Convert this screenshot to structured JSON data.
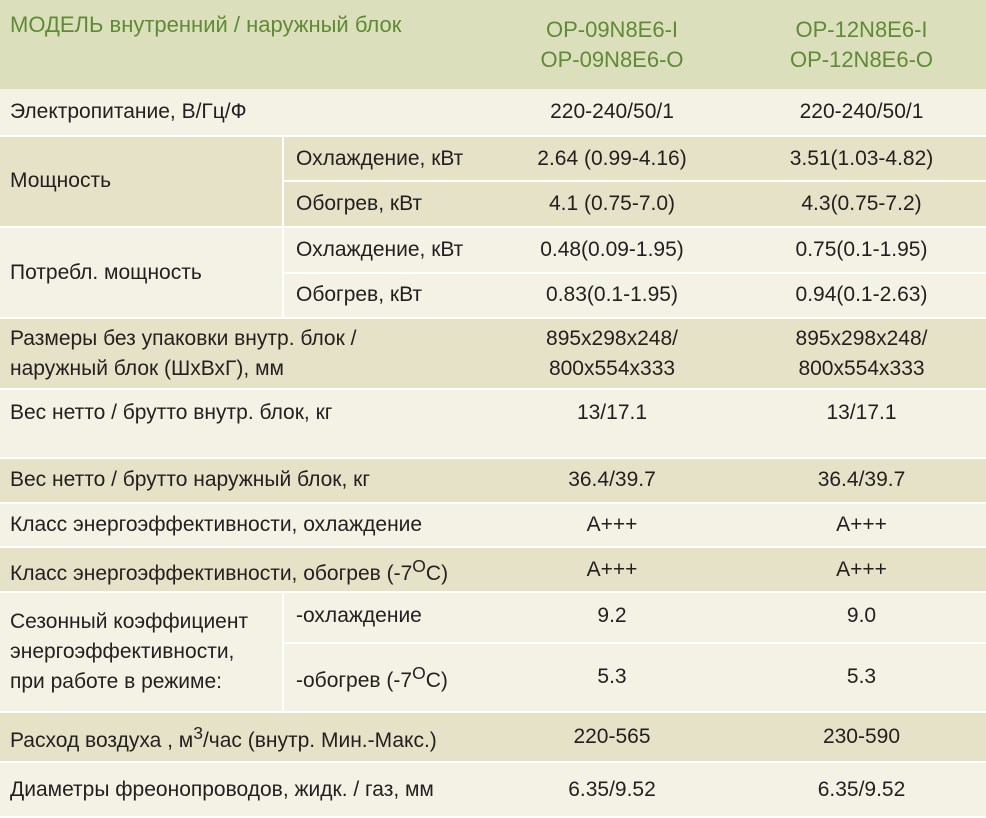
{
  "header": {
    "label": "МОДЕЛЬ  внутренний  /  наружный блок",
    "models": [
      "OP-09N8E6-I\nOP-09N8E6-O",
      "OP-12N8E6-I\nOP-12N8E6-O"
    ]
  },
  "rows": {
    "power_supply": {
      "label": "Электропитание, В/Гц/Ф",
      "values": [
        "220-240/50/1",
        "220-240/50/1"
      ]
    },
    "capacity": {
      "label": "Мощность",
      "cooling": {
        "label": "Охлаждение, кВт",
        "values": [
          "2.64 (0.99-4.16)",
          "3.51(1.03-4.82)"
        ]
      },
      "heating": {
        "label": "Обогрев, кВт",
        "values": [
          "4.1 (0.75-7.0)",
          "4.3(0.75-7.2)"
        ]
      }
    },
    "power_input": {
      "label": "Потребл. мощность",
      "cooling": {
        "label": "Охлаждение, кВт",
        "values": [
          "0.48(0.09-1.95)",
          "0.75(0.1-1.95)"
        ]
      },
      "heating": {
        "label": "Обогрев, кВт",
        "values": [
          "0.83(0.1-1.95)",
          "0.94(0.1-2.63)"
        ]
      }
    },
    "dimensions": {
      "label": "Размеры без упаковки внутр. блок /\nнаружный блок  (ШхВхГ), мм",
      "values": [
        "895x298x248/\n800x554x333",
        "895x298x248/\n800x554x333"
      ]
    },
    "weight_indoor": {
      "label": "Вес нетто / брутто внутр. блок, кг",
      "values": [
        "13/17.1",
        "13/17.1"
      ]
    },
    "weight_outdoor": {
      "label": "Вес нетто / брутто наружный блок, кг",
      "values": [
        "36.4/39.7",
        "36.4/39.7"
      ]
    },
    "energy_class_cooling": {
      "label": "Класс энергоэффективности, охлаждение",
      "values": [
        "A+++",
        "A+++"
      ]
    },
    "energy_class_heating": {
      "label_main": "Класс энергоэффективности, обогрев (-7",
      "label_sup": "O",
      "label_end": "C)",
      "values": [
        "A+++",
        "A+++"
      ]
    },
    "seasonal": {
      "label": "Сезонный коэффициент\nэнергоэффективности,\nпри работе в режиме:",
      "cooling": {
        "label": "-охлаждение",
        "values": [
          "9.2",
          "9.0"
        ]
      },
      "heating": {
        "label_main": "-обогрев  (-7",
        "label_sup": "O",
        "label_end": "C)",
        "values": [
          "5.3",
          "5.3"
        ]
      }
    },
    "airflow": {
      "label_main": "Расход воздуха , м",
      "label_sup": "3",
      "label_end": "/час (внутр. Мин.-Макс.)",
      "values": [
        "220-565",
        "230-590"
      ]
    },
    "pipes": {
      "label": "Диаметры фреонопроводов, жидк. / газ, мм",
      "values": [
        "6.35/9.52",
        "6.35/9.52"
      ]
    }
  }
}
